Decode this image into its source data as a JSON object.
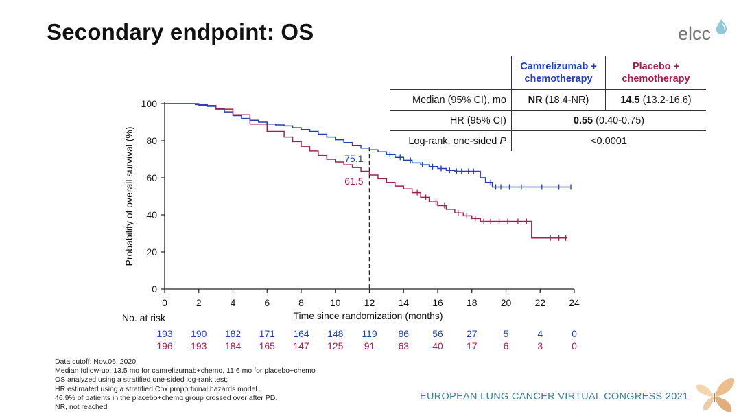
{
  "title": "Secondary endpoint: OS",
  "logo_text": "elcc",
  "congress": "EUROPEAN LUNG CANCER VIRTUAL CONGRESS 2021",
  "colors": {
    "camrelizumab": "#1f3fb8",
    "placebo": "#a3204e",
    "congress": "#3a7f94"
  },
  "stats": {
    "head_camre": "Camrelizumab + chemotherapy",
    "head_placebo": "Placebo + chemotherapy",
    "median_label": "Median (95% CI), mo",
    "median_camre_bold": "NR",
    "median_camre_rest": " (18.4-NR)",
    "median_placebo_bold": "14.5",
    "median_placebo_rest": " (13.2-16.6)",
    "hr_label": "HR (95% CI)",
    "hr_bold": "0.55",
    "hr_rest": " (0.40-0.75)",
    "logrank_label": "Log-rank, one-sided ",
    "logrank_p": "P",
    "logrank_value": "<0.0001"
  },
  "footnotes": [
    "Data cutoff: Nov.06, 2020",
    "Median follow-up: 13.5 mo for camrelizumab+chemo, 11.6 mo for placebo+chemo",
    "OS analyzed using a stratified one-sided log-rank test;",
    "HR estimated using a stratified Cox proportional hazards model.",
    "46.9% of patients in the placebo+chemo group crossed over after PD.",
    "NR, not reached"
  ],
  "chart_data": {
    "type": "line",
    "xlabel": "Time since randomization (months)",
    "ylabel": "Probability of overall survival (%)",
    "xlim": [
      0,
      24
    ],
    "ylim": [
      0,
      100
    ],
    "xticks": [
      0,
      2,
      4,
      6,
      8,
      10,
      12,
      14,
      16,
      18,
      20,
      22,
      24
    ],
    "yticks": [
      0,
      20,
      40,
      60,
      80,
      100
    ],
    "reference_x": 12,
    "annotations": [
      {
        "x": 12,
        "y": 75.1,
        "text": "75.1",
        "series": 0
      },
      {
        "x": 12,
        "y": 61.5,
        "text": "61.5",
        "series": 1
      }
    ],
    "series": [
      {
        "color": "#1f3fb8",
        "points": [
          [
            0,
            100
          ],
          [
            1.2,
            100
          ],
          [
            1.8,
            99.5
          ],
          [
            2.5,
            98.5
          ],
          [
            3,
            97.5
          ],
          [
            3.5,
            95.5
          ],
          [
            4,
            93.5
          ],
          [
            4.5,
            92
          ],
          [
            5,
            91
          ],
          [
            5.5,
            90
          ],
          [
            6,
            89
          ],
          [
            6.5,
            88.5
          ],
          [
            7,
            88
          ],
          [
            7.5,
            87
          ],
          [
            8,
            86
          ],
          [
            8.5,
            85
          ],
          [
            9,
            83.5
          ],
          [
            9.5,
            82
          ],
          [
            10,
            80.5
          ],
          [
            10.5,
            79
          ],
          [
            11,
            77.5
          ],
          [
            11.5,
            76
          ],
          [
            12,
            75.1
          ],
          [
            12.5,
            74
          ],
          [
            13,
            72.5
          ],
          [
            13.5,
            71
          ],
          [
            14,
            69.5
          ],
          [
            14.5,
            68
          ],
          [
            15,
            67
          ],
          [
            15.5,
            66
          ],
          [
            16,
            65
          ],
          [
            16.5,
            64
          ],
          [
            17,
            63.5
          ],
          [
            17.5,
            63.5
          ],
          [
            18.2,
            63.5
          ],
          [
            18.5,
            60
          ],
          [
            18.8,
            57.5
          ],
          [
            19.2,
            55
          ],
          [
            19.8,
            55
          ],
          [
            20.5,
            55
          ],
          [
            21.5,
            55
          ],
          [
            22.5,
            55
          ],
          [
            23.8,
            55
          ]
        ],
        "censors": [
          13.2,
          13.8,
          14.4,
          15.1,
          15.7,
          16.2,
          16.7,
          17.1,
          17.4,
          17.8,
          18.1,
          19.1,
          19.4,
          19.7,
          20.2,
          20.9,
          22.1,
          23.1,
          23.8
        ]
      },
      {
        "color": "#a3204e",
        "points": [
          [
            0,
            100
          ],
          [
            1,
            100
          ],
          [
            2,
            99
          ],
          [
            3,
            97
          ],
          [
            4,
            94
          ],
          [
            5,
            89
          ],
          [
            6,
            85
          ],
          [
            7,
            82
          ],
          [
            7.5,
            79.5
          ],
          [
            8,
            77
          ],
          [
            8.5,
            74.5
          ],
          [
            9,
            72
          ],
          [
            9.5,
            70
          ],
          [
            10,
            68.5
          ],
          [
            10.5,
            67
          ],
          [
            11,
            65.5
          ],
          [
            11.5,
            63.5
          ],
          [
            12,
            61.5
          ],
          [
            12.5,
            59.5
          ],
          [
            13,
            57.5
          ],
          [
            13.5,
            55.5
          ],
          [
            14,
            54
          ],
          [
            14.5,
            52
          ],
          [
            15,
            49.5
          ],
          [
            15.5,
            47
          ],
          [
            16,
            45
          ],
          [
            16.5,
            43
          ],
          [
            17,
            41
          ],
          [
            17.5,
            39.5
          ],
          [
            18,
            38
          ],
          [
            18.5,
            36.5
          ],
          [
            19.5,
            36.5
          ],
          [
            20.5,
            36.5
          ],
          [
            21.5,
            36.5
          ],
          [
            21.5,
            27.5
          ],
          [
            22.5,
            27.5
          ],
          [
            23.6,
            27.5
          ]
        ],
        "censors": [
          14.8,
          15.3,
          15.9,
          16.4,
          17.2,
          17.7,
          18.2,
          18.7,
          19.1,
          19.6,
          20.1,
          20.7,
          21.2,
          22.6,
          23.1,
          23.5
        ]
      }
    ],
    "risk_table": {
      "label": "No. at risk",
      "times": [
        0,
        2,
        4,
        6,
        8,
        10,
        12,
        14,
        16,
        18,
        20,
        22,
        24
      ],
      "camre": [
        193,
        190,
        182,
        171,
        164,
        148,
        119,
        86,
        56,
        27,
        5,
        4,
        0
      ],
      "placebo": [
        196,
        193,
        184,
        165,
        147,
        125,
        91,
        63,
        40,
        17,
        6,
        3,
        0
      ]
    }
  }
}
